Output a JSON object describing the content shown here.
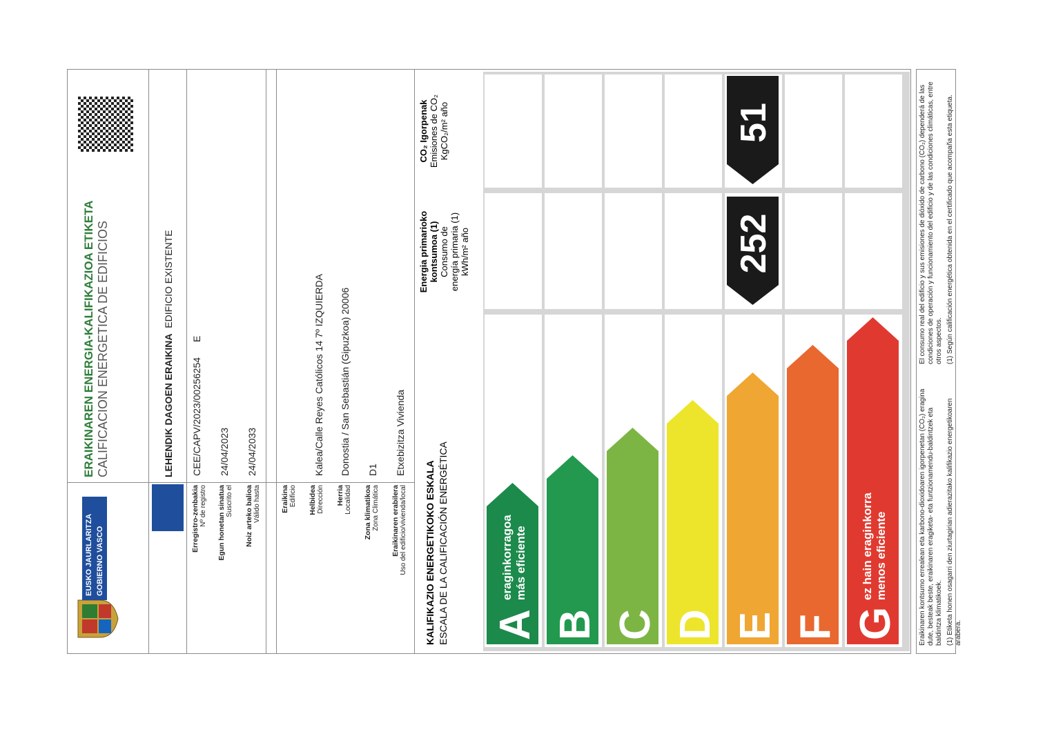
{
  "header": {
    "logo_line1": "EUSKO JAURLARITZA",
    "logo_line2": "GOBIERNO VASCO",
    "title_eu": "ERAIKINAREN ENERGIA-KALIFIKAZIOA ETIKETA",
    "title_es": "CALIFICACION ENERGETICA DE EDIFICIOS"
  },
  "building_type": {
    "eu": "LEHENDIK DAGOEN ERAIKINA",
    "es": "EDIFICIO EXISTENTE"
  },
  "registration": [
    {
      "label_eu": "Erregistro-zenbakia",
      "label_es": "Nº de registro",
      "value": "CEE/CAPV/2023/00256254",
      "extra": "E"
    },
    {
      "label_eu": "Egun honetan sinatua",
      "label_es": "Suscrito el",
      "value": "24/04/2023"
    },
    {
      "label_eu": "Noiz arteko balioa",
      "label_es": "Válido hasta",
      "value": "24/04/2033"
    }
  ],
  "building": [
    {
      "label_eu": "Eraikina",
      "label_es": "Edificio"
    },
    {
      "label_eu": "Helbidea",
      "label_es": "Dirección",
      "value": "Kalea/Calle  Reyes Católicos  14  7º IZQUIERDA"
    },
    {
      "label_eu": "Herria",
      "label_es": "Localidad",
      "value": "Donostia / San Sebastián (Gipuzkoa) 20006"
    },
    {
      "label_eu": "Zona klimatikoa",
      "label_es": "Zona Climática",
      "value": "D1"
    },
    {
      "label_eu": "Eraikinaren erabilera",
      "label_es": "Uso del edificio/vivienda/local",
      "value": "Etxebizitza  Vivienda"
    }
  ],
  "scale": {
    "title_eu": "KALIFIKAZIO ENERGETIKOKO ESKALA",
    "title_es": "ESCALA DE LA CALIFICACIÓN ENERGÉTICA",
    "energy_header": [
      "Energia primarioko",
      "kontsumoa (1)",
      "Consumo de",
      "energía primaria (1)",
      "kWh/m² año"
    ],
    "co2_header": [
      "CO₂ Igorpenak",
      "Emisiones de CO₂",
      "KgCO₂/m² año"
    ],
    "classes": [
      {
        "letter": "A",
        "color": "#1c8a4b",
        "label_eu": "eraginkorragoa",
        "label_es": "más eficiente"
      },
      {
        "letter": "B",
        "color": "#22994f",
        "color_note": null
      },
      {
        "letter": "C",
        "color": "#7db545"
      },
      {
        "letter": "D",
        "color": "#ede52c"
      },
      {
        "letter": "E",
        "color": "#f0a632",
        "energy": 252,
        "co2": 51
      },
      {
        "letter": "F",
        "color": "#e8682f"
      },
      {
        "letter": "G",
        "color": "#e03a30",
        "label_eu": "ez hain eraginkorra",
        "label_es": "menos eficiente"
      }
    ]
  },
  "footer": {
    "notes_eu": [
      "Eraikinaren kontsumo errealean eta karbono-dioxidoaren igorpenetan (CO₂) eragina dute, besteak beste, eraikinaren eragiketa- eta funtzionamendu-baldintzek eta baldintza klimatikoek.",
      "(1) Etiketa honen osagarri den ziurtagirian adierazitako kalifikazio energetikoaren arabera."
    ],
    "notes_es": [
      "El consumo real del edificio y sus emisiones de dióxido de carbono (CO₂) dependerá de las condiciones de operación y funcionamiento del edificio y de las condiciones climáticas, entre otros aspectos.",
      "(1) Según calificación energética obtenida en el certificado que acompaña esta etiqueta."
    ]
  }
}
